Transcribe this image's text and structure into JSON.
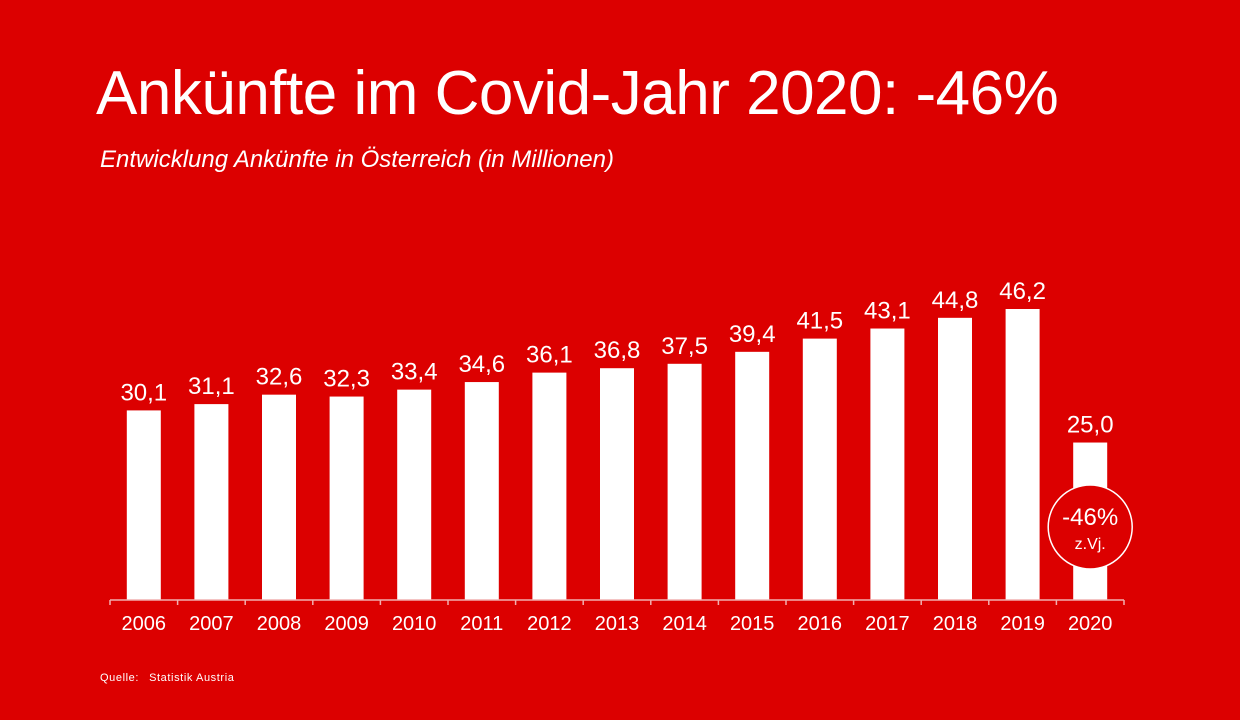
{
  "title": "Ankünfte im Covid-Jahr 2020: -46%",
  "subtitle": "Entwicklung Ankünfte in Österreich (in Millionen)",
  "source": {
    "label": "Quelle:",
    "name": "Statistik Austria"
  },
  "colors": {
    "background": "#dc0000",
    "bars": "#ffffff",
    "text": "#ffffff"
  },
  "chart_data": {
    "type": "bar",
    "title": "Ankünfte im Covid-Jahr 2020: -46%",
    "subtitle": "Entwicklung Ankünfte in Österreich (in Millionen)",
    "categories": [
      "2006",
      "2007",
      "2008",
      "2009",
      "2010",
      "2011",
      "2012",
      "2013",
      "2014",
      "2015",
      "2016",
      "2017",
      "2018",
      "2019",
      "2020"
    ],
    "values": [
      30.1,
      31.1,
      32.6,
      32.3,
      33.4,
      34.6,
      36.1,
      36.8,
      37.5,
      39.4,
      41.5,
      43.1,
      44.8,
      46.2,
      25.0
    ],
    "value_labels": [
      "30,1",
      "31,1",
      "32,6",
      "32,3",
      "33,4",
      "34,6",
      "36,1",
      "36,8",
      "37,5",
      "39,4",
      "41,5",
      "43,1",
      "44,8",
      "46,2",
      "25,0"
    ],
    "xlabel": "",
    "ylabel": "",
    "ylim": [
      0,
      46.2
    ],
    "grid": false,
    "annotations": [
      {
        "category": "2020",
        "text": "-46%",
        "subtext": "z.Vj."
      }
    ]
  }
}
